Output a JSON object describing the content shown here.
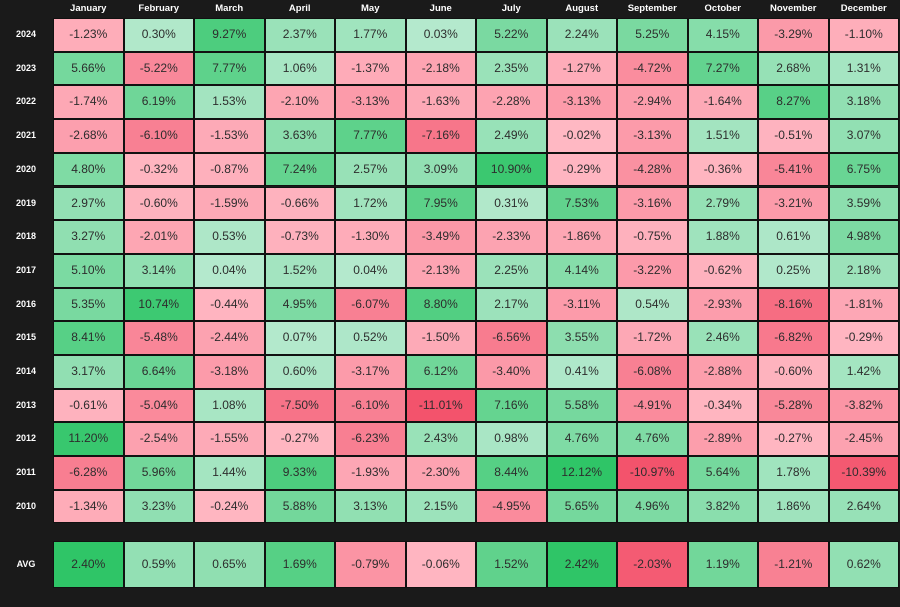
{
  "chart_data": {
    "type": "heatmap",
    "title": "",
    "columns": [
      "January",
      "February",
      "March",
      "April",
      "May",
      "June",
      "July",
      "August",
      "September",
      "October",
      "November",
      "December"
    ],
    "rows": [
      "2024",
      "2023",
      "2022",
      "2021",
      "2020",
      "2019",
      "2018",
      "2017",
      "2016",
      "2015",
      "2014",
      "2013",
      "2012",
      "2011",
      "2010"
    ],
    "values": [
      [
        -1.23,
        0.3,
        9.27,
        2.37,
        1.77,
        0.03,
        5.22,
        2.24,
        5.25,
        4.15,
        -3.29,
        -1.1
      ],
      [
        5.66,
        -5.22,
        7.77,
        1.06,
        -1.37,
        -2.18,
        2.35,
        -1.27,
        -4.72,
        7.27,
        2.68,
        1.31
      ],
      [
        -1.74,
        6.19,
        1.53,
        -2.1,
        -3.13,
        -1.63,
        -2.28,
        -3.13,
        -2.94,
        -1.64,
        8.27,
        3.18
      ],
      [
        -2.68,
        -6.1,
        -1.53,
        3.63,
        7.77,
        -7.16,
        2.49,
        -0.02,
        -3.13,
        1.51,
        -0.51,
        3.07
      ],
      [
        4.8,
        -0.32,
        -0.87,
        7.24,
        2.57,
        3.09,
        10.9,
        -0.29,
        -4.28,
        -0.36,
        -5.41,
        6.75
      ],
      [
        2.97,
        -0.6,
        -1.59,
        -0.66,
        1.72,
        7.95,
        0.31,
        7.53,
        -3.16,
        2.79,
        -3.21,
        3.59
      ],
      [
        3.27,
        -2.01,
        0.53,
        -0.73,
        -1.3,
        -3.49,
        -2.33,
        -1.86,
        -0.75,
        1.88,
        0.61,
        4.98
      ],
      [
        5.1,
        3.14,
        0.04,
        1.52,
        0.04,
        -2.13,
        2.25,
        4.14,
        -3.22,
        -0.62,
        0.25,
        2.18
      ],
      [
        5.35,
        10.74,
        -0.44,
        4.95,
        -6.07,
        8.8,
        2.17,
        -3.11,
        0.54,
        -2.93,
        -8.16,
        -1.81
      ],
      [
        8.41,
        -5.48,
        -2.44,
        0.07,
        0.52,
        -1.5,
        -6.56,
        3.55,
        -1.72,
        2.46,
        -6.82,
        -0.29
      ],
      [
        3.17,
        6.64,
        -3.18,
        0.6,
        -3.17,
        6.12,
        -3.4,
        0.41,
        -6.08,
        -2.88,
        -0.6,
        1.42
      ],
      [
        -0.61,
        -5.04,
        1.08,
        -7.5,
        -6.1,
        -11.01,
        7.16,
        5.58,
        -4.91,
        -0.34,
        -5.28,
        -3.82
      ],
      [
        11.2,
        -2.54,
        -1.55,
        -0.27,
        -6.23,
        2.43,
        0.98,
        4.76,
        4.76,
        -2.89,
        -0.27,
        -2.45
      ],
      [
        -6.28,
        5.96,
        1.44,
        9.33,
        -1.93,
        -2.3,
        8.44,
        12.12,
        -10.97,
        5.64,
        1.78,
        -10.39
      ],
      [
        -1.34,
        3.23,
        -0.24,
        5.88,
        3.13,
        2.15,
        -4.95,
        5.65,
        4.96,
        3.82,
        1.86,
        2.64
      ]
    ],
    "avg_label": "AVG",
    "avg": [
      2.4,
      0.59,
      0.65,
      1.69,
      -0.79,
      -0.06,
      1.52,
      2.42,
      -2.03,
      1.19,
      -1.21,
      0.62
    ],
    "value_format": "percent, 2 decimals",
    "colors": {
      "positive_low": "#b4e9cd",
      "positive_high": "#2fc567",
      "negative_low": "#ffb8c3",
      "negative_high": "#f24a64",
      "background": "#1a1a1a"
    }
  }
}
